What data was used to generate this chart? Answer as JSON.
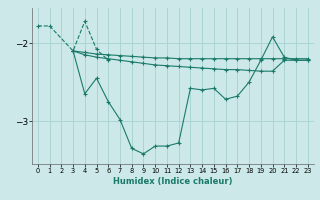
{
  "xlabel": "Humidex (Indice chaleur)",
  "bg_color": "#cce8e8",
  "grid_color": "#aad4d4",
  "line_color": "#1a7a6a",
  "xlim": [
    -0.5,
    23.5
  ],
  "ylim": [
    -3.55,
    -1.55
  ],
  "yticks": [
    -3,
    -2
  ],
  "xticks": [
    0,
    1,
    2,
    3,
    4,
    5,
    6,
    7,
    8,
    9,
    10,
    11,
    12,
    13,
    14,
    15,
    16,
    17,
    18,
    19,
    20,
    21,
    22,
    23
  ],
  "series": [
    {
      "x": [
        0,
        1,
        3,
        4,
        5,
        6
      ],
      "y": [
        -1.78,
        -1.78,
        -2.1,
        -1.72,
        -2.08,
        -2.22
      ],
      "ls": "--"
    },
    {
      "x": [
        3,
        4,
        5,
        6,
        7,
        8,
        9,
        10,
        11,
        12,
        13,
        14,
        15,
        16,
        17,
        18,
        19,
        20,
        21,
        22,
        23
      ],
      "y": [
        -2.1,
        -2.65,
        -2.45,
        -2.75,
        -2.98,
        -3.35,
        -3.42,
        -3.32,
        -3.32,
        -3.28,
        -2.58,
        -2.6,
        -2.58,
        -2.72,
        -2.68,
        -2.5,
        -2.22,
        -1.92,
        -2.18,
        -2.22,
        -2.22
      ],
      "ls": "-"
    },
    {
      "x": [
        3,
        4,
        5,
        6,
        7,
        8,
        9,
        10,
        11,
        12,
        13,
        14,
        15,
        16,
        17,
        18,
        19,
        20,
        21,
        22,
        23
      ],
      "y": [
        -2.1,
        -2.15,
        -2.18,
        -2.2,
        -2.22,
        -2.24,
        -2.26,
        -2.28,
        -2.29,
        -2.3,
        -2.31,
        -2.32,
        -2.33,
        -2.34,
        -2.34,
        -2.35,
        -2.36,
        -2.36,
        -2.22,
        -2.22,
        -2.22
      ],
      "ls": "-"
    },
    {
      "x": [
        3,
        4,
        5,
        6,
        7,
        8,
        9,
        10,
        11,
        12,
        13,
        14,
        15,
        16,
        17,
        18,
        19,
        20,
        21,
        22,
        23
      ],
      "y": [
        -2.1,
        -2.12,
        -2.14,
        -2.15,
        -2.16,
        -2.17,
        -2.18,
        -2.19,
        -2.19,
        -2.2,
        -2.2,
        -2.2,
        -2.2,
        -2.2,
        -2.2,
        -2.2,
        -2.2,
        -2.2,
        -2.2,
        -2.2,
        -2.2
      ],
      "ls": "-"
    }
  ]
}
